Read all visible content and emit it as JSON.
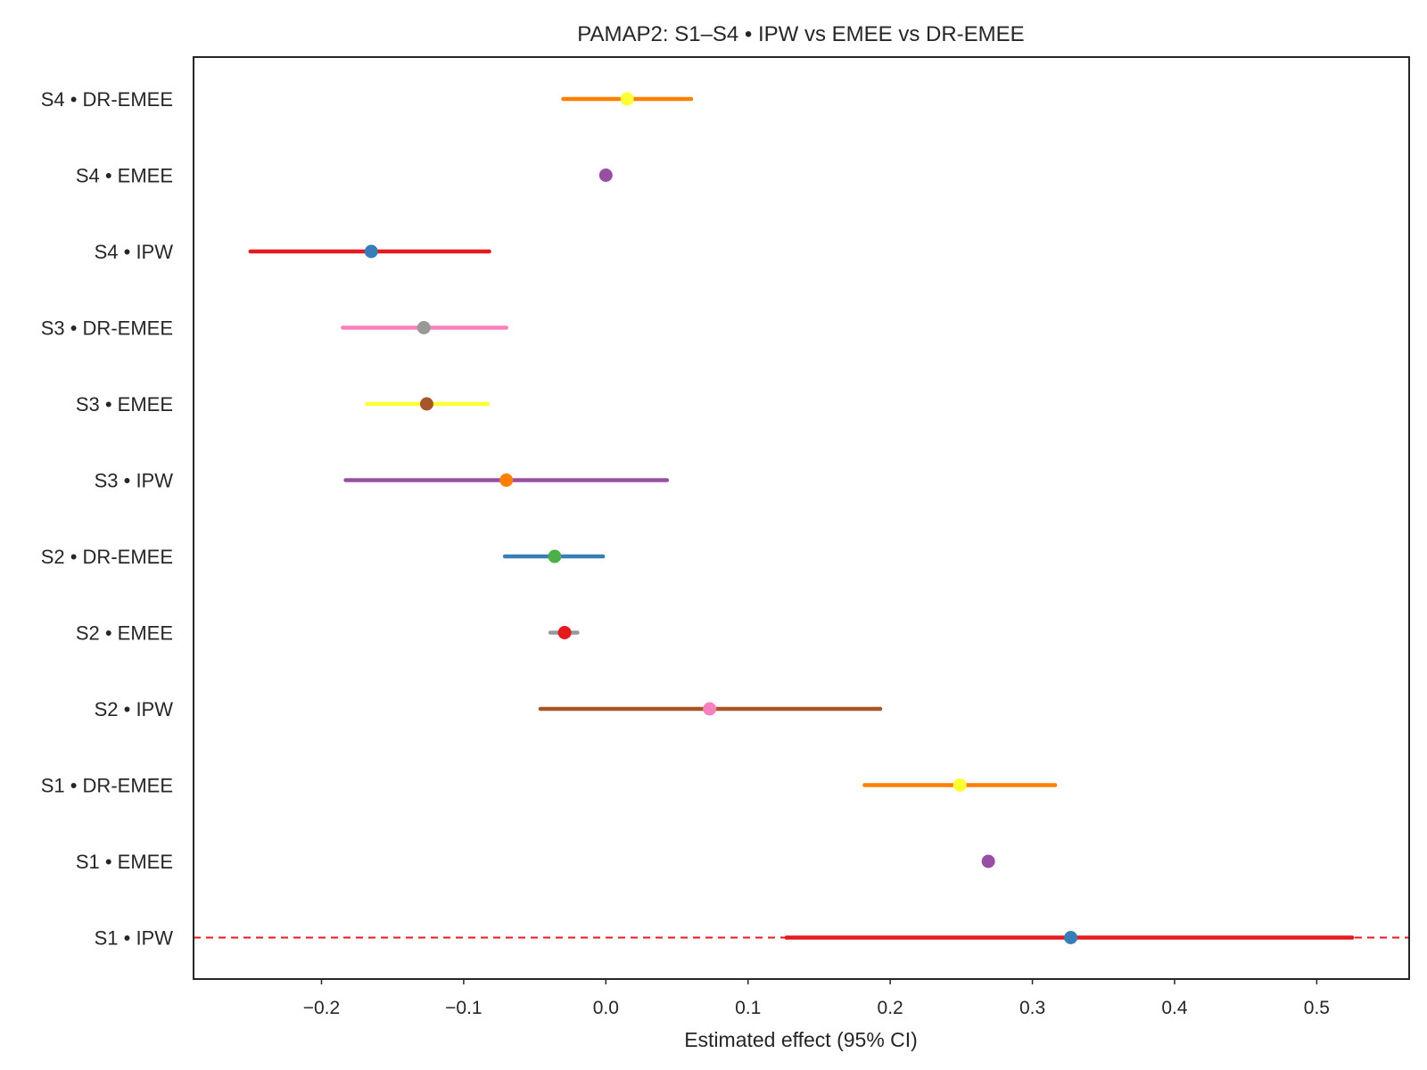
{
  "chart_data": {
    "type": "forest",
    "title": "PAMAP2: S1–S4 • IPW vs EMEE vs DR-EMEE",
    "xlabel": "Estimated effect (95% CI)",
    "ylabel": "",
    "xlim": [
      -0.29,
      0.565
    ],
    "xticks": [
      -0.2,
      -0.1,
      0.0,
      0.1,
      0.2,
      0.3,
      0.4,
      0.5
    ],
    "xtick_labels": [
      "−0.2",
      "−0.1",
      "0.0",
      "0.1",
      "0.2",
      "0.3",
      "0.4",
      "0.5"
    ],
    "grid": false,
    "reference_line": {
      "y_row": "S1 • IPW",
      "style": "dashed",
      "color": "#e41a1c"
    },
    "rows": [
      {
        "label": "S4 • DR-EMEE",
        "estimate": 0.015,
        "lower": -0.03,
        "upper": 0.06,
        "line_color": "#ff7f00",
        "point_color": "#ffff33"
      },
      {
        "label": "S4 • EMEE",
        "estimate": 0.0,
        "lower": 0.0,
        "upper": 0.0,
        "line_color": "#984ea3",
        "point_color": "#984ea3"
      },
      {
        "label": "S4 • IPW",
        "estimate": -0.165,
        "lower": -0.25,
        "upper": -0.082,
        "line_color": "#e41a1c",
        "point_color": "#377eb8"
      },
      {
        "label": "S3 • DR-EMEE",
        "estimate": -0.128,
        "lower": -0.185,
        "upper": -0.07,
        "line_color": "#f781bf",
        "point_color": "#999999"
      },
      {
        "label": "S3 • EMEE",
        "estimate": -0.126,
        "lower": -0.168,
        "upper": -0.083,
        "line_color": "#ffff33",
        "point_color": "#a65628"
      },
      {
        "label": "S3 • IPW",
        "estimate": -0.07,
        "lower": -0.183,
        "upper": 0.043,
        "line_color": "#984ea3",
        "point_color": "#ff7f00"
      },
      {
        "label": "S2 • DR-EMEE",
        "estimate": -0.036,
        "lower": -0.071,
        "upper": -0.002,
        "line_color": "#377eb8",
        "point_color": "#4daf4a"
      },
      {
        "label": "S2 • EMEE",
        "estimate": -0.029,
        "lower": -0.039,
        "upper": -0.02,
        "line_color": "#999999",
        "point_color": "#e41a1c"
      },
      {
        "label": "S2 • IPW",
        "estimate": 0.073,
        "lower": -0.046,
        "upper": 0.193,
        "line_color": "#a65628",
        "point_color": "#f781bf"
      },
      {
        "label": "S1 • DR-EMEE",
        "estimate": 0.249,
        "lower": 0.182,
        "upper": 0.316,
        "line_color": "#ff7f00",
        "point_color": "#ffff33"
      },
      {
        "label": "S1 • EMEE",
        "estimate": 0.269,
        "lower": 0.269,
        "upper": 0.269,
        "line_color": "#984ea3",
        "point_color": "#984ea3"
      },
      {
        "label": "S1 • IPW",
        "estimate": 0.327,
        "lower": 0.127,
        "upper": 0.525,
        "line_color": "#e41a1c",
        "point_color": "#377eb8"
      }
    ]
  }
}
